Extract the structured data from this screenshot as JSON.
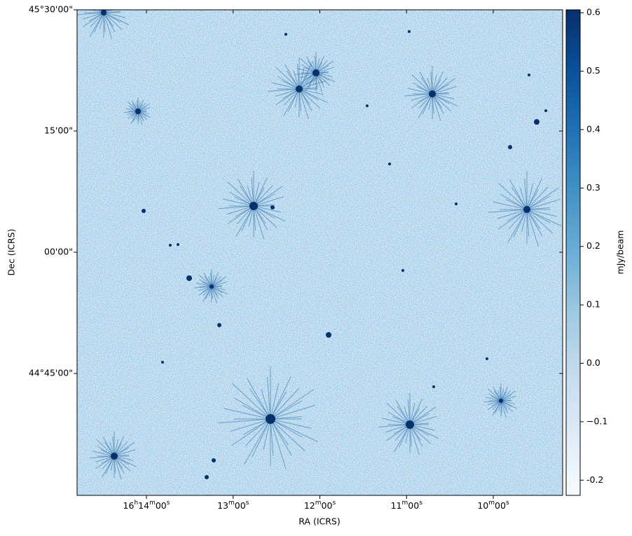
{
  "chart_data": {
    "type": "image",
    "xlabel": "RA (ICRS)",
    "ylabel": "Dec (ICRS)",
    "xlim": [
      243.7,
      242.3
    ],
    "ylim": [
      44.4986,
      45.5
    ],
    "xticks": [
      {
        "value": 243.5,
        "label": "16h14m00s"
      },
      {
        "value": 243.25,
        "label": "13m00s"
      },
      {
        "value": 243.0,
        "label": "12m00s"
      },
      {
        "value": 242.75,
        "label": "11m00s"
      },
      {
        "value": 242.5,
        "label": "10m00s"
      }
    ],
    "yticks": [
      {
        "value": 45.5,
        "label": "45°30'00\""
      },
      {
        "value": 45.25,
        "label": "15'00\""
      },
      {
        "value": 45.0,
        "label": "00'00\""
      },
      {
        "value": 44.75,
        "label": "44°45'00\""
      }
    ],
    "colorbar": {
      "label": "mJy/beam",
      "lim": [
        -0.226,
        0.605
      ],
      "ticks": [
        -0.2,
        {
          "value": -0.1,
          "label": "−0.1"
        },
        {
          "value": 0,
          "label": "0.0"
        },
        0.1,
        0.2,
        0.3,
        0.4,
        0.5,
        0.6
      ],
      "colors": [
        "#f7fbff",
        "#deebf7",
        "#c6dbef",
        "#9ecae1",
        "#6baed6",
        "#4292c6",
        "#2171b5",
        "#08519c",
        "#08306b"
      ]
    }
  }
}
